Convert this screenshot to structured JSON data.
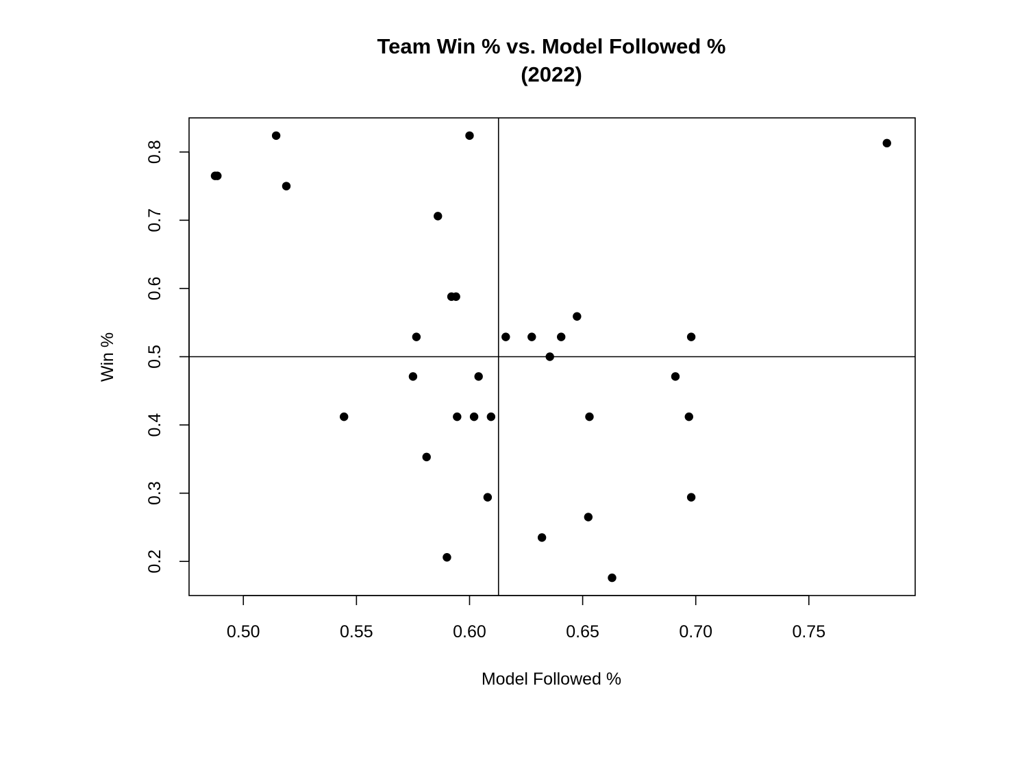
{
  "chart_data": {
    "type": "scatter",
    "title_line1": "Team Win % vs. Model Followed %",
    "title_line2": "(2022)",
    "xlabel": "Model Followed %",
    "ylabel": "Win %",
    "xlim": [
      0.476,
      0.797
    ],
    "ylim": [
      0.15,
      0.85
    ],
    "x_ticks": [
      0.5,
      0.55,
      0.6,
      0.65,
      0.7,
      0.75
    ],
    "x_tick_labels": [
      "0.50",
      "0.55",
      "0.60",
      "0.65",
      "0.70",
      "0.75"
    ],
    "y_ticks": [
      0.2,
      0.3,
      0.4,
      0.5,
      0.6,
      0.7,
      0.8
    ],
    "y_tick_labels": [
      "0.2",
      "0.3",
      "0.4",
      "0.5",
      "0.6",
      "0.7",
      "0.8"
    ],
    "vline_x": 0.6128,
    "hline_y": 0.5,
    "grid": false,
    "point_color": "#000000",
    "points": [
      {
        "x": 0.4875,
        "y": 0.765
      },
      {
        "x": 0.4885,
        "y": 0.765
      },
      {
        "x": 0.5145,
        "y": 0.824
      },
      {
        "x": 0.519,
        "y": 0.75
      },
      {
        "x": 0.5445,
        "y": 0.412
      },
      {
        "x": 0.575,
        "y": 0.471
      },
      {
        "x": 0.5765,
        "y": 0.529
      },
      {
        "x": 0.581,
        "y": 0.353
      },
      {
        "x": 0.586,
        "y": 0.706
      },
      {
        "x": 0.59,
        "y": 0.206
      },
      {
        "x": 0.592,
        "y": 0.588
      },
      {
        "x": 0.594,
        "y": 0.588
      },
      {
        "x": 0.5945,
        "y": 0.412
      },
      {
        "x": 0.6,
        "y": 0.824
      },
      {
        "x": 0.602,
        "y": 0.412
      },
      {
        "x": 0.604,
        "y": 0.471
      },
      {
        "x": 0.608,
        "y": 0.294
      },
      {
        "x": 0.6095,
        "y": 0.412
      },
      {
        "x": 0.616,
        "y": 0.529
      },
      {
        "x": 0.6275,
        "y": 0.529
      },
      {
        "x": 0.632,
        "y": 0.235
      },
      {
        "x": 0.6355,
        "y": 0.5
      },
      {
        "x": 0.6405,
        "y": 0.529
      },
      {
        "x": 0.6475,
        "y": 0.559
      },
      {
        "x": 0.6525,
        "y": 0.265
      },
      {
        "x": 0.653,
        "y": 0.412
      },
      {
        "x": 0.663,
        "y": 0.176
      },
      {
        "x": 0.691,
        "y": 0.471
      },
      {
        "x": 0.697,
        "y": 0.412
      },
      {
        "x": 0.698,
        "y": 0.294
      },
      {
        "x": 0.698,
        "y": 0.529
      },
      {
        "x": 0.7845,
        "y": 0.813
      }
    ]
  }
}
